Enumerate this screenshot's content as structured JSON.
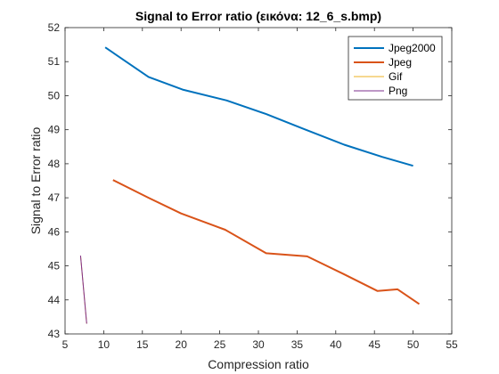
{
  "chart_data": {
    "type": "line",
    "title": "Signal to Error ratio (εικόνα: 12_6_s.bmp)",
    "xlabel": "Compression ratio",
    "ylabel": "Signal to Error ratio",
    "xlim": [
      5,
      55
    ],
    "ylim": [
      43,
      52
    ],
    "xticks": [
      "5",
      "10",
      "15",
      "20",
      "25",
      "30",
      "35",
      "40",
      "45",
      "50",
      "55"
    ],
    "yticks": [
      "43",
      "44",
      "45",
      "46",
      "47",
      "48",
      "49",
      "50",
      "51",
      "52"
    ],
    "grid": false,
    "legend_position": "top-right",
    "series": [
      {
        "name": "Jpeg2000",
        "color": "#0072bd",
        "x": [
          10.2,
          15.8,
          20.2,
          25.9,
          31.0,
          35.9,
          41.1,
          46.0,
          50.0
        ],
        "y": [
          51.42,
          50.55,
          50.18,
          49.86,
          49.46,
          49.02,
          48.56,
          48.2,
          47.94
        ]
      },
      {
        "name": "Jpeg",
        "color": "#d95319",
        "x": [
          11.2,
          15.8,
          20.0,
          25.7,
          31.0,
          36.3,
          41.0,
          45.4,
          48.0,
          50.8
        ],
        "y": [
          47.52,
          47.0,
          46.54,
          46.06,
          45.37,
          45.28,
          44.76,
          44.26,
          44.31,
          43.88
        ]
      },
      {
        "name": "Gif",
        "color": "#edb120",
        "x": [
          7.0,
          7.8
        ],
        "y": [
          45.3,
          43.3
        ]
      },
      {
        "name": "Png",
        "color": "#7e2f8e",
        "x": [
          7.0,
          7.8
        ],
        "y": [
          45.3,
          43.3
        ]
      }
    ]
  }
}
